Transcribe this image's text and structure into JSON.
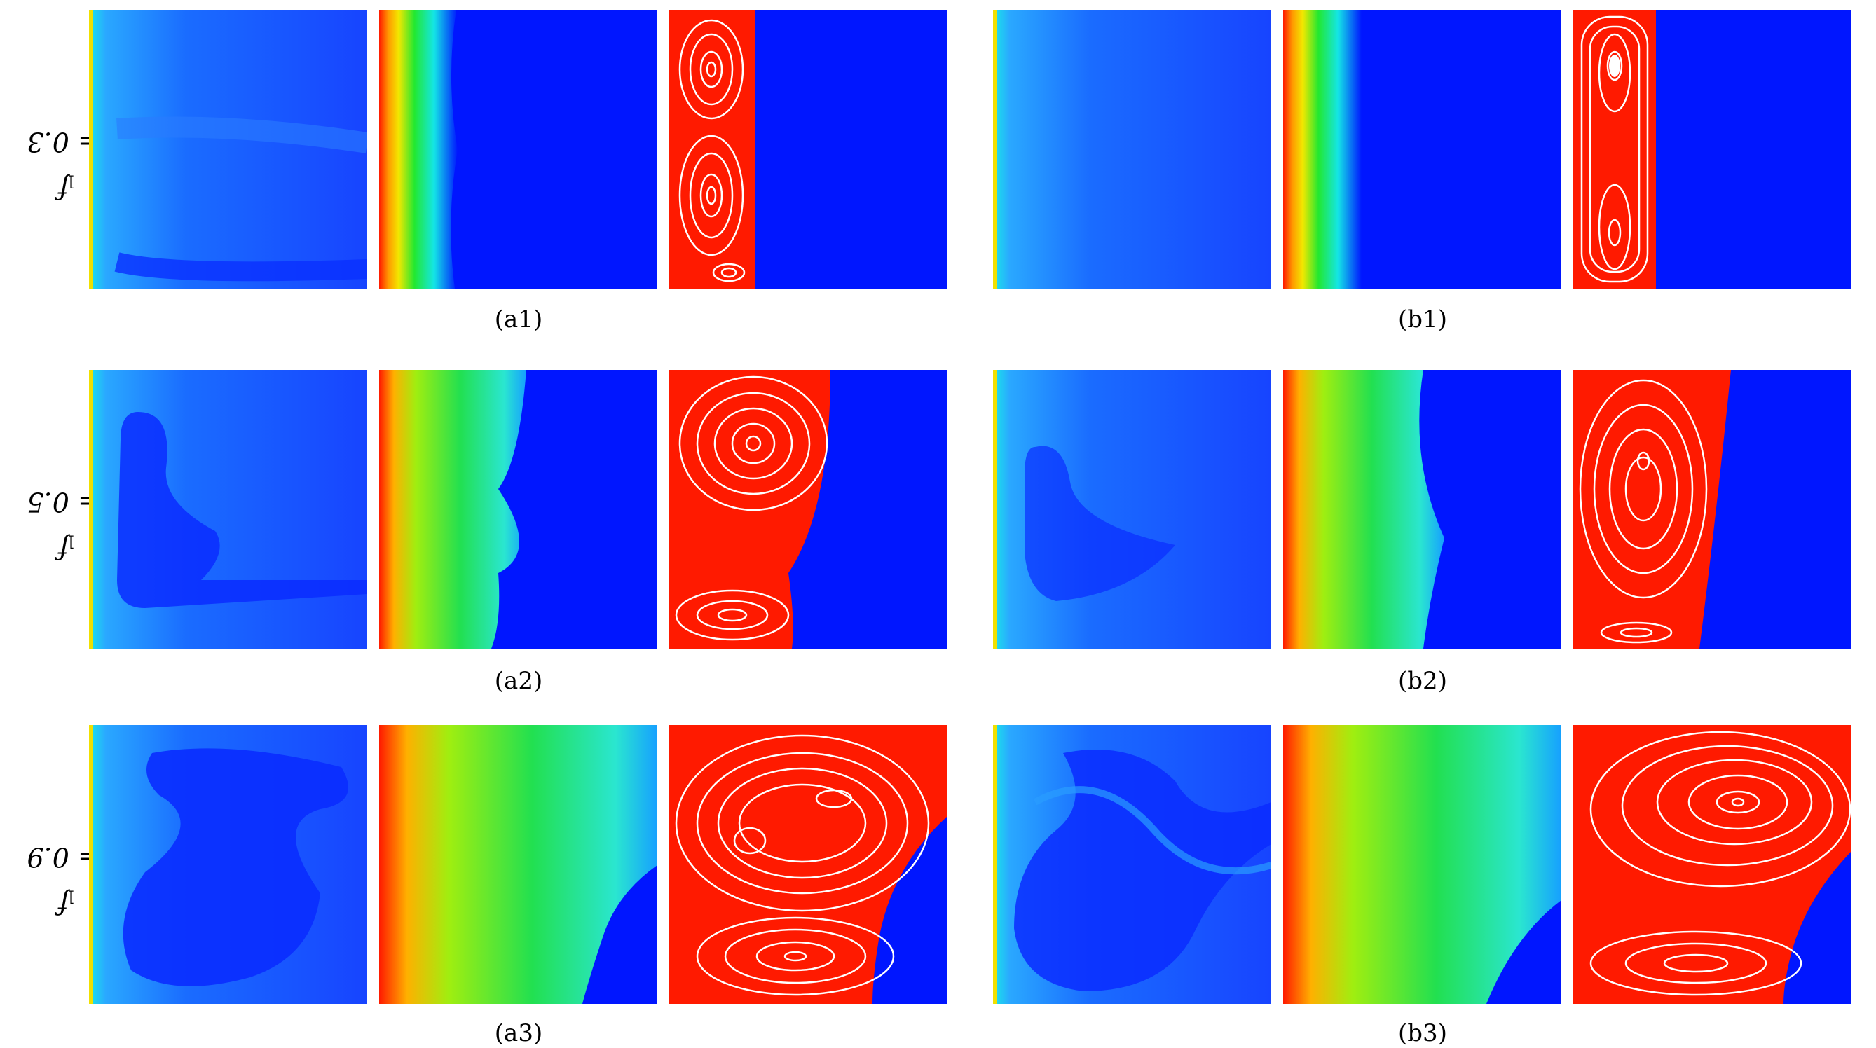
{
  "rows": [
    {
      "label_var": "f",
      "label_sub": "l",
      "label_rest": " = 0.3",
      "captions": [
        "(a1)",
        "(b1)"
      ]
    },
    {
      "label_var": "f",
      "label_sub": "l",
      "label_rest": " = 0.5",
      "captions": [
        "(a2)",
        "(b2)"
      ]
    },
    {
      "label_var": "f",
      "label_sub": "l",
      "label_rest": " = 0.9",
      "captions": [
        "(a3)",
        "(b3)"
      ]
    }
  ],
  "colors": {
    "cold": "#0016ff",
    "hot": "#ff1a00",
    "streamline": "#ffffff"
  }
}
